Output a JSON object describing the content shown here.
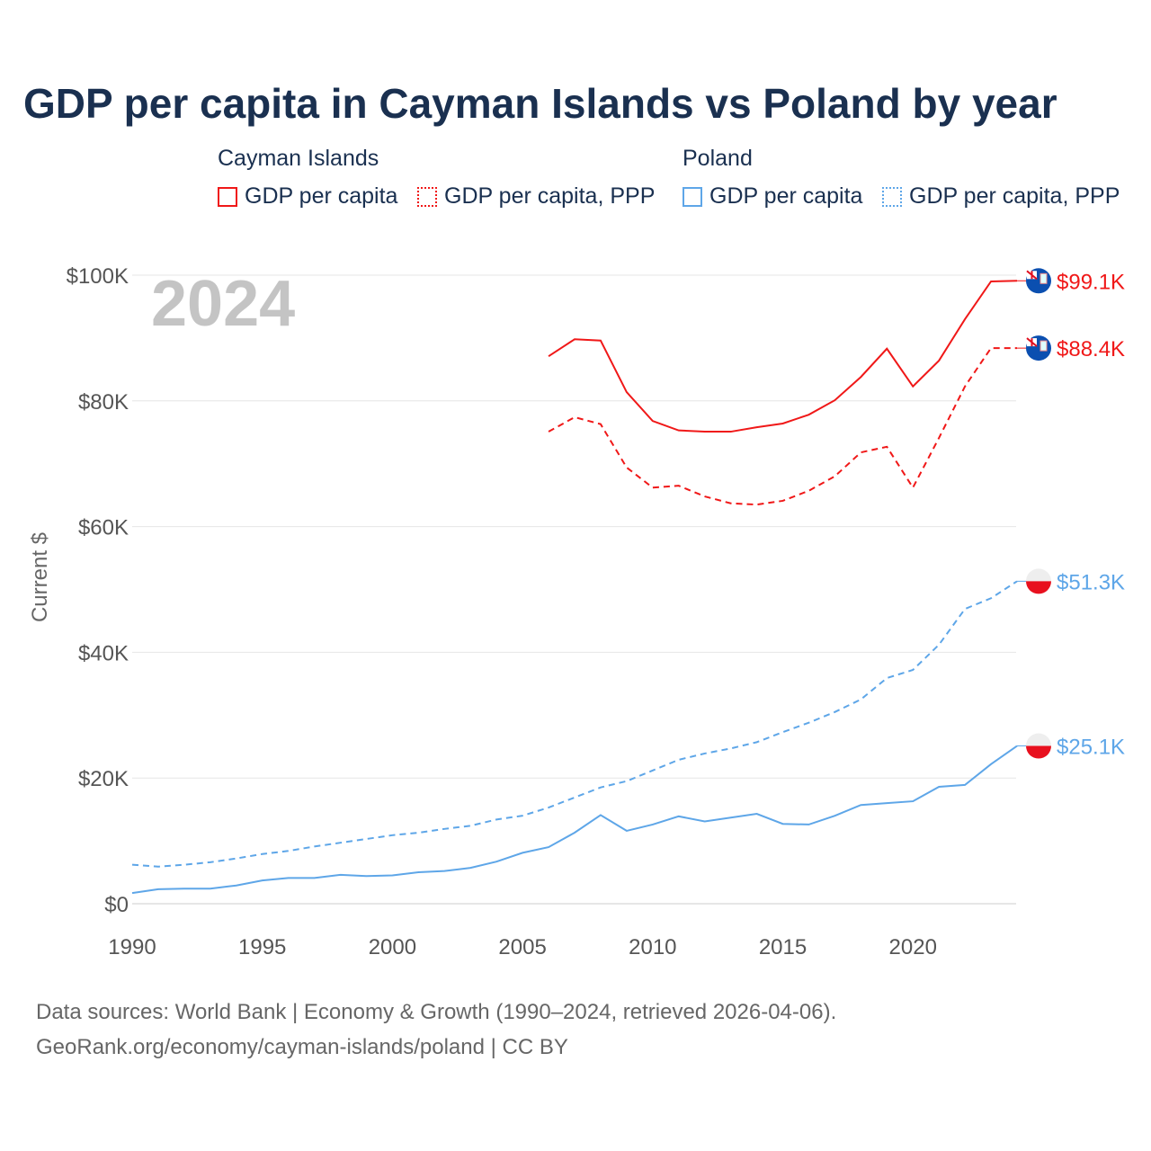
{
  "title": "GDP per capita in Cayman Islands vs Poland by year",
  "legend": {
    "groups": [
      {
        "name": "Cayman Islands",
        "items": [
          "GDP per capita",
          "GDP per capita, PPP"
        ]
      },
      {
        "name": "Poland",
        "items": [
          "GDP per capita",
          "GDP per capita, PPP"
        ]
      }
    ]
  },
  "colors": {
    "cayman": "#f01818",
    "poland": "#5ea6e8",
    "title": "#1a3050"
  },
  "footer": {
    "line1": "Data sources: World Bank | Economy & Growth (1990–2024, retrieved 2026-04-06).",
    "line2": "GeoRank.org/economy/cayman-islands/poland | CC BY"
  },
  "chart_data": {
    "type": "line",
    "title": "GDP per capita in Cayman Islands vs Poland by year",
    "year_watermark": "2024",
    "ylabel": "Current $",
    "xlabel": "",
    "xlim": [
      1990,
      2024
    ],
    "ylim": [
      0,
      100000
    ],
    "xticks": [
      1990,
      1995,
      2000,
      2005,
      2010,
      2015,
      2020
    ],
    "yticks": [
      0,
      20000,
      40000,
      60000,
      80000,
      100000
    ],
    "ytick_labels": [
      "$0",
      "$20K",
      "$40K",
      "$60K",
      "$80K",
      "$100K"
    ],
    "grid": true,
    "legend_position": "top",
    "series": [
      {
        "name": "Cayman Islands GDP per capita",
        "country": "cayman",
        "dash": false,
        "end_label": "$99.1K",
        "start": 2006,
        "values": [
          87.1,
          89.8,
          89.6,
          81.4,
          76.8,
          75.3,
          75.1,
          75.1,
          75.8,
          76.4,
          77.8,
          80.1,
          83.8,
          88.3,
          82.3,
          86.4,
          93.0,
          99.0,
          99.1
        ]
      },
      {
        "name": "Cayman Islands GDP per capita, PPP",
        "country": "cayman",
        "dash": true,
        "end_label": "$88.4K",
        "start": 2006,
        "values": [
          75.1,
          77.4,
          76.3,
          69.4,
          66.2,
          66.5,
          64.8,
          63.7,
          63.5,
          64.1,
          65.7,
          68.0,
          71.8,
          72.7,
          66.2,
          74.1,
          82.3,
          88.4,
          88.4
        ]
      },
      {
        "name": "Poland GDP per capita",
        "country": "poland",
        "dash": false,
        "end_label": "$25.1K",
        "start": 1990,
        "values": [
          1.7,
          2.3,
          2.4,
          2.4,
          2.9,
          3.7,
          4.1,
          4.1,
          4.6,
          4.4,
          4.5,
          5.0,
          5.2,
          5.7,
          6.7,
          8.1,
          9.0,
          11.3,
          14.1,
          11.6,
          12.6,
          13.9,
          13.1,
          13.7,
          14.3,
          12.7,
          12.6,
          14.0,
          15.7,
          16.0,
          16.3,
          18.6,
          18.9,
          22.2,
          25.1
        ]
      },
      {
        "name": "Poland GDP per capita, PPP",
        "country": "poland",
        "dash": true,
        "end_label": "$51.3K",
        "start": 1990,
        "values": [
          6.2,
          5.9,
          6.2,
          6.6,
          7.2,
          7.9,
          8.4,
          9.1,
          9.7,
          10.3,
          10.9,
          11.3,
          11.9,
          12.4,
          13.4,
          14.0,
          15.3,
          16.9,
          18.5,
          19.5,
          21.2,
          22.9,
          23.9,
          24.7,
          25.7,
          27.3,
          28.8,
          30.5,
          32.5,
          35.9,
          37.2,
          41.2,
          46.9,
          48.6,
          51.3
        ]
      }
    ],
    "value_unit": "thousand US$"
  }
}
